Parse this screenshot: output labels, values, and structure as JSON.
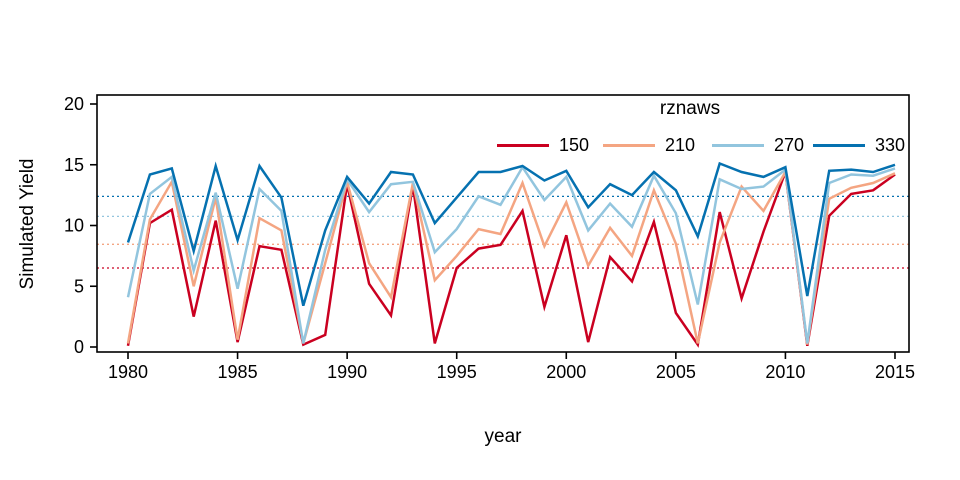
{
  "chart": {
    "ylabel": "Simulated Yield",
    "xlabel": "year",
    "legend_title": "rznaws"
  },
  "chart_data": {
    "type": "line",
    "title": "",
    "xlabel": "year",
    "ylabel": "Simulated Yield",
    "legend_title": "rznaws",
    "legend_position": "top-right-inside",
    "grid": false,
    "xlim": [
      1978.6,
      2015.7
    ],
    "ylim": [
      -0.4,
      20.7
    ],
    "x_ticks": [
      1980,
      1985,
      1990,
      1995,
      2000,
      2005,
      2010,
      2015
    ],
    "y_ticks": [
      0,
      5,
      10,
      15,
      20
    ],
    "x": [
      1980,
      1981,
      1982,
      1983,
      1984,
      1985,
      1986,
      1987,
      1988,
      1989,
      1990,
      1991,
      1992,
      1993,
      1994,
      1995,
      1996,
      1997,
      1998,
      1999,
      2000,
      2001,
      2002,
      2003,
      2004,
      2005,
      2006,
      2007,
      2008,
      2009,
      2010,
      2011,
      2012,
      2013,
      2014,
      2015
    ],
    "mean_lines_dashed": true,
    "series": [
      {
        "name": "150",
        "color": "#CA0020",
        "mean_line": 6.5,
        "values": [
          0.1,
          10.2,
          11.3,
          2.5,
          10.4,
          0.4,
          8.3,
          8.0,
          0.2,
          1.0,
          13.4,
          5.2,
          2.6,
          13.3,
          0.3,
          6.5,
          8.1,
          8.4,
          11.2,
          3.3,
          9.2,
          0.4,
          7.4,
          5.4,
          10.3,
          2.8,
          0.2,
          11.1,
          4.0,
          9.5,
          14.4,
          0.1,
          10.8,
          12.6,
          12.9,
          14.2
        ]
      },
      {
        "name": "210",
        "color": "#F4A582",
        "mean_line": 8.45,
        "values": [
          0.3,
          10.5,
          13.6,
          5.0,
          12.3,
          0.6,
          10.6,
          9.6,
          0.3,
          6.9,
          13.6,
          6.9,
          4.1,
          13.5,
          5.5,
          7.5,
          9.7,
          9.3,
          13.5,
          8.3,
          11.9,
          6.7,
          9.8,
          7.5,
          12.9,
          8.5,
          0.3,
          8.6,
          13.2,
          11.2,
          14.4,
          0.2,
          12.2,
          13.1,
          13.5,
          14.3
        ]
      },
      {
        "name": "270",
        "color": "#92C5DE",
        "mean_line": 10.75,
        "values": [
          4.1,
          12.6,
          14.0,
          6.3,
          12.7,
          4.8,
          13.0,
          11.2,
          0.3,
          8.0,
          13.8,
          11.1,
          13.4,
          13.6,
          7.8,
          9.7,
          12.4,
          11.7,
          14.8,
          12.1,
          14.0,
          9.6,
          11.8,
          9.9,
          14.1,
          11.0,
          3.5,
          13.8,
          13.0,
          13.2,
          14.6,
          0.3,
          13.5,
          14.2,
          14.1,
          14.7
        ]
      },
      {
        "name": "330",
        "color": "#0571B0",
        "mean_line": 12.4,
        "values": [
          8.6,
          14.2,
          14.7,
          7.9,
          14.9,
          8.8,
          14.9,
          12.3,
          3.4,
          9.6,
          14.0,
          11.8,
          14.4,
          14.2,
          10.2,
          12.3,
          14.4,
          14.4,
          14.9,
          13.7,
          14.5,
          11.5,
          13.4,
          12.5,
          14.4,
          12.9,
          9.1,
          15.1,
          14.4,
          14.0,
          14.8,
          4.2,
          14.5,
          14.6,
          14.4,
          15.0
        ]
      }
    ]
  }
}
